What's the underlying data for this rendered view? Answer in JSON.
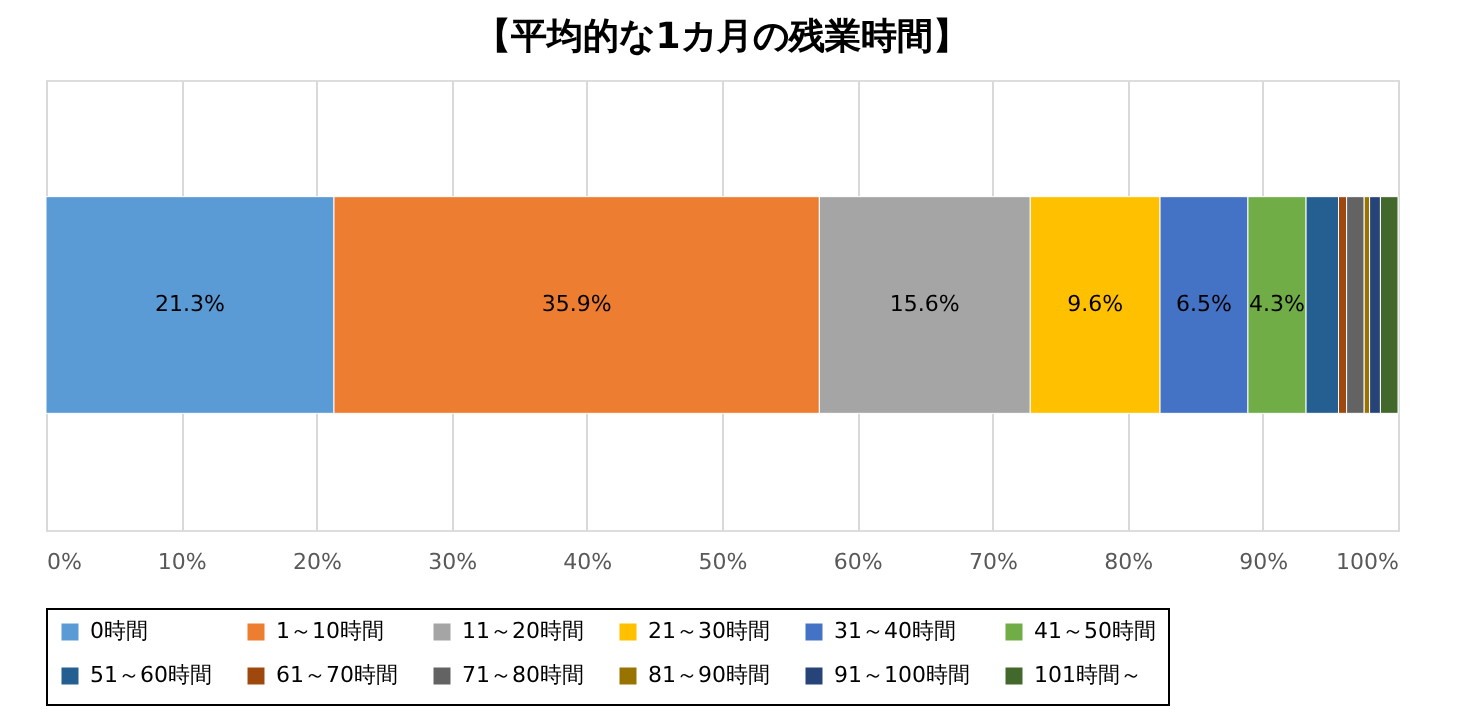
{
  "chart_data": {
    "type": "bar",
    "orientation": "horizontal",
    "stacked": true,
    "title": "【平均的な1カ月の残業時間】",
    "categories": [
      null
    ],
    "series": [
      {
        "name": "0時間",
        "color": "#5b9bd5",
        "values": [
          21.3
        ]
      },
      {
        "name": "1～10時間",
        "color": "#ed7d31",
        "values": [
          35.9
        ]
      },
      {
        "name": "11～20時間",
        "color": "#a5a5a5",
        "values": [
          15.6
        ]
      },
      {
        "name": "21～30時間",
        "color": "#ffc000",
        "values": [
          9.6
        ]
      },
      {
        "name": "31～40時間",
        "color": "#4472c4",
        "values": [
          6.5
        ]
      },
      {
        "name": "41～50時間",
        "color": "#70ad47",
        "values": [
          4.3
        ]
      },
      {
        "name": "51～60時間",
        "color": "#255e91",
        "values": [
          2.4
        ]
      },
      {
        "name": "61～70時間",
        "color": "#9e480e",
        "values": [
          0.6
        ]
      },
      {
        "name": "71～80時間",
        "color": "#636363",
        "values": [
          1.3
        ]
      },
      {
        "name": "81～90時間",
        "color": "#997300",
        "values": [
          0.4
        ]
      },
      {
        "name": "91～100時間",
        "color": "#264478",
        "values": [
          0.8
        ]
      },
      {
        "name": "101時間～",
        "color": "#43682b",
        "values": [
          1.3
        ]
      }
    ],
    "value_labels": [
      "21.3%",
      "35.9%",
      "15.6%",
      "9.6%",
      "6.5%",
      "4.3%",
      null,
      null,
      null,
      null,
      null,
      null
    ],
    "xlim": [
      0,
      100
    ],
    "xticks": [
      {
        "value": 0,
        "label": "0%"
      },
      {
        "value": 10,
        "label": "10%"
      },
      {
        "value": 20,
        "label": "20%"
      },
      {
        "value": 30,
        "label": "30%"
      },
      {
        "value": 40,
        "label": "40%"
      },
      {
        "value": 50,
        "label": "50%"
      },
      {
        "value": 60,
        "label": "60%"
      },
      {
        "value": 70,
        "label": "70%"
      },
      {
        "value": 80,
        "label": "80%"
      },
      {
        "value": 90,
        "label": "90%"
      },
      {
        "value": 100,
        "label": "100%"
      }
    ],
    "grid": "x",
    "legend": "bottom"
  }
}
